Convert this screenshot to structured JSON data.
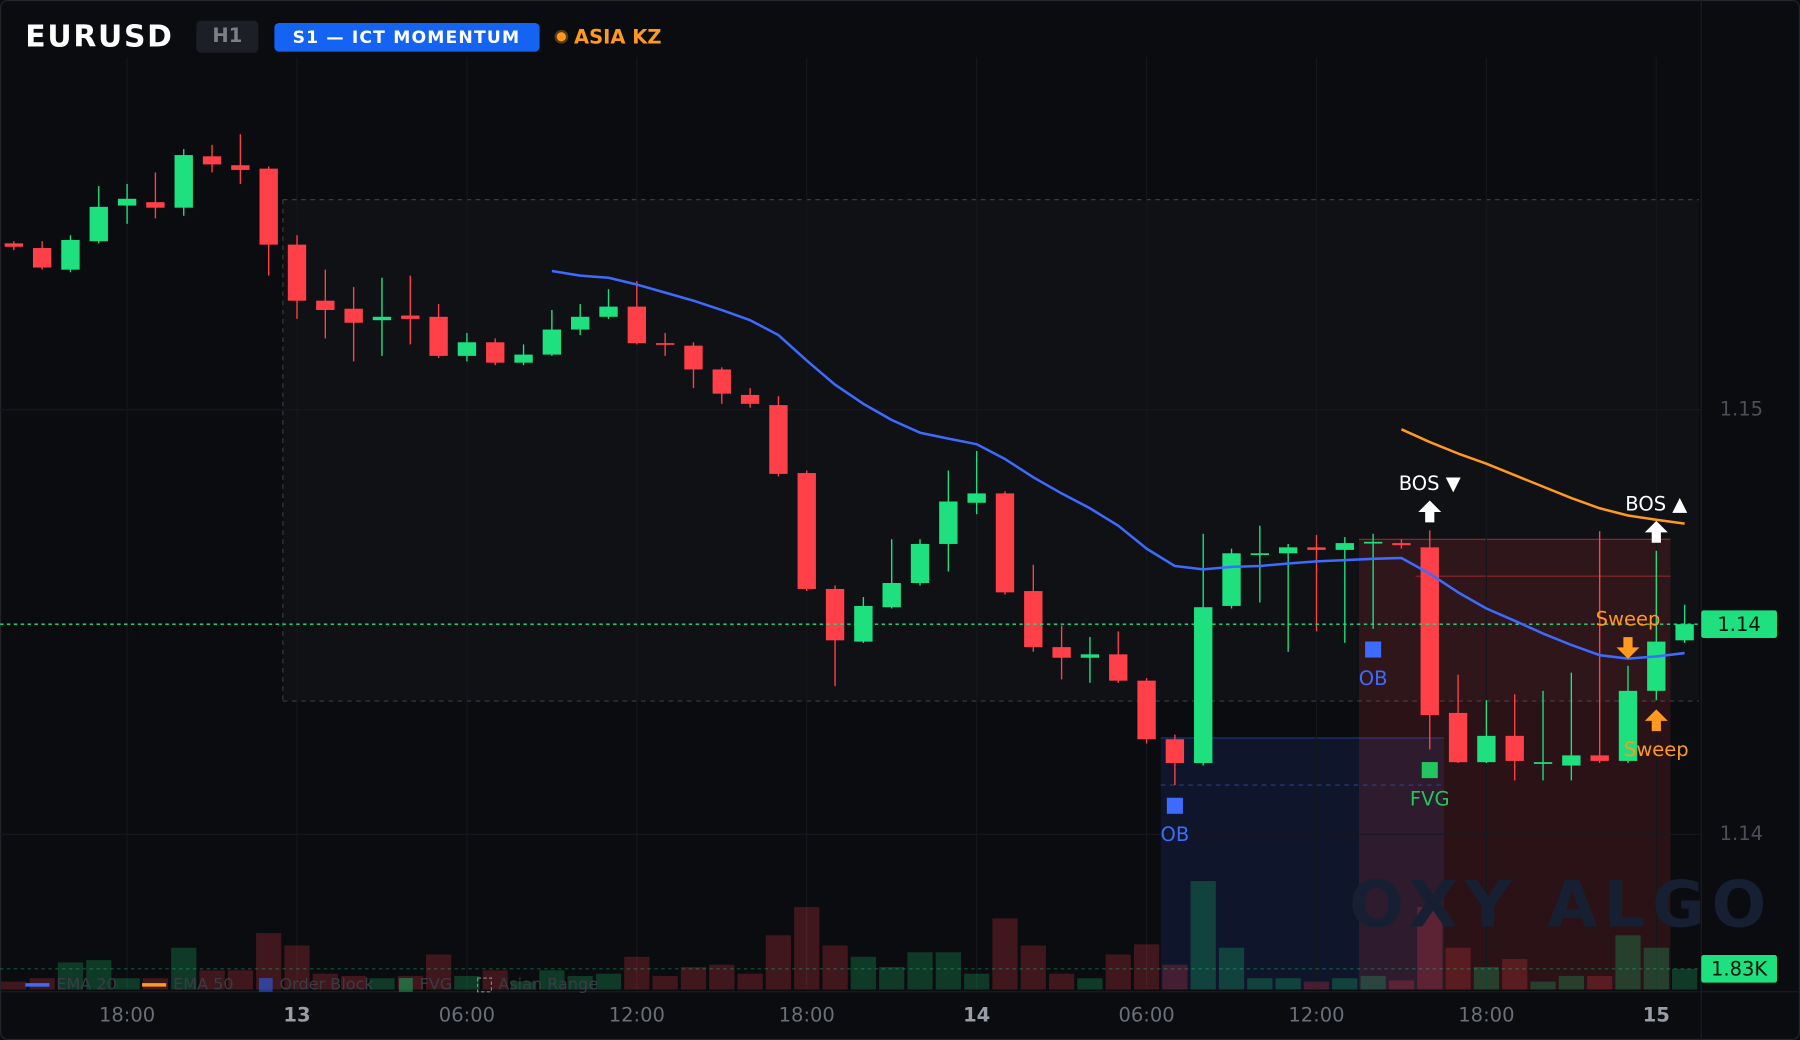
{
  "chart_data": {
    "type": "candlestick",
    "title": "EURUSD",
    "timeframe": "H1",
    "strategy": "S1 — ICT MOMENTUM",
    "session": "ASIA KZ",
    "watermark": "OXY ALGO",
    "up_color": "#1ee07f",
    "down_color": "#ff4048",
    "categories": [
      null,
      null,
      null,
      null,
      "18:00",
      null,
      null,
      null,
      null,
      null,
      "13",
      null,
      null,
      null,
      null,
      null,
      "06:00",
      null,
      null,
      null,
      null,
      null,
      "12:00",
      null,
      null,
      null,
      null,
      null,
      "18:00",
      null,
      null,
      null,
      null,
      null,
      "14",
      null,
      null,
      null,
      null,
      null,
      "06:00",
      null,
      null,
      null,
      null,
      null,
      "12:00",
      null,
      null,
      null,
      null,
      null,
      "18:00",
      null,
      null,
      null,
      null,
      null,
      "15",
      null
    ],
    "open": [
      1.15392,
      1.15381,
      1.1533,
      1.15397,
      1.15481,
      1.15489,
      1.15476,
      1.15597,
      1.15576,
      1.15568,
      1.15389,
      1.15257,
      1.15238,
      1.15211,
      1.15222,
      1.15219,
      1.15127,
      1.15159,
      1.15111,
      1.1513,
      1.15189,
      1.15219,
      1.15243,
      1.15157,
      1.15151,
      1.15095,
      1.15035,
      1.15011,
      1.14851,
      1.14578,
      1.14454,
      1.14535,
      1.14592,
      1.14684,
      1.14781,
      1.14803,
      1.14573,
      1.14441,
      1.14416,
      1.14424,
      1.14362,
      1.14224,
      1.14168,
      1.14538,
      1.14659,
      1.14662,
      1.14676,
      1.1467,
      1.14686,
      1.14686,
      1.14676,
      1.14286,
      1.1417,
      1.14232,
      1.14168,
      1.14162,
      1.14186,
      1.14173,
      1.14338,
      1.14457
    ],
    "high": [
      1.15397,
      1.15397,
      1.15411,
      1.15527,
      1.15532,
      1.15559,
      1.15614,
      1.15624,
      1.15649,
      1.15573,
      1.15411,
      1.1533,
      1.15289,
      1.15311,
      1.15316,
      1.15249,
      1.15181,
      1.15168,
      1.15154,
      1.15235,
      1.15249,
      1.15284,
      1.15303,
      1.15181,
      1.15159,
      1.151,
      1.15051,
      1.15032,
      1.14857,
      1.14586,
      1.14559,
      1.14695,
      1.14695,
      1.14857,
      1.14903,
      1.14808,
      1.14635,
      1.14492,
      1.14465,
      1.14478,
      1.14368,
      1.14235,
      1.14708,
      1.14673,
      1.14727,
      1.14684,
      1.14705,
      1.147,
      1.14708,
      1.14695,
      1.14716,
      1.14376,
      1.14316,
      1.1433,
      1.14338,
      1.14381,
      1.14714,
      1.14397,
      1.14668,
      1.14541
    ],
    "low": [
      1.15376,
      1.1533,
      1.15324,
      1.15392,
      1.15438,
      1.15451,
      1.15457,
      1.15559,
      1.15532,
      1.15316,
      1.15214,
      1.15168,
      1.15114,
      1.15127,
      1.15154,
      1.15122,
      1.15114,
      1.15105,
      1.15105,
      1.15127,
      1.15176,
      1.15214,
      1.15154,
      1.15127,
      1.15051,
      1.15014,
      1.15005,
      1.14843,
      1.14573,
      1.14349,
      1.14451,
      1.14532,
      1.14586,
      1.14619,
      1.14754,
      1.14565,
      1.1443,
      1.14365,
      1.14357,
      1.14357,
      1.14214,
      1.14116,
      1.14162,
      1.14532,
      1.14546,
      1.1443,
      1.14478,
      1.14451,
      1.14484,
      1.14673,
      1.142,
      1.14168,
      1.14168,
      1.14127,
      1.14127,
      1.14127,
      1.14168,
      1.14168,
      1.14316,
      1.14451
    ],
    "close": [
      1.15384,
      1.15335,
      1.154,
      1.15478,
      1.15497,
      1.15476,
      1.156,
      1.15578,
      1.15565,
      1.15389,
      1.15257,
      1.15235,
      1.15205,
      1.15219,
      1.15214,
      1.15127,
      1.15159,
      1.15111,
      1.1513,
      1.15189,
      1.15219,
      1.15243,
      1.15157,
      1.15154,
      1.15095,
      1.15038,
      1.15014,
      1.14849,
      1.14578,
      1.14457,
      1.14538,
      1.14592,
      1.14684,
      1.14784,
      1.14803,
      1.1457,
      1.14441,
      1.14416,
      1.14424,
      1.14362,
      1.14224,
      1.14168,
      1.14535,
      1.14662,
      1.14662,
      1.14676,
      1.1467,
      1.14686,
      1.14689,
      1.14681,
      1.14281,
      1.1417,
      1.14232,
      1.14173,
      1.1417,
      1.14186,
      1.14173,
      1.14338,
      1.14454,
      1.14495
    ],
    "volume": [
      700,
      1000,
      2400,
      2600,
      1000,
      1000,
      3700,
      1700,
      1700,
      5000,
      3900,
      1400,
      1200,
      1000,
      1200,
      3100,
      1200,
      1700,
      700,
      1700,
      1200,
      1400,
      2900,
      1200,
      2000,
      2200,
      1400,
      4800,
      7300,
      3900,
      2900,
      2000,
      3300,
      3300,
      1400,
      6300,
      3900,
      1400,
      1000,
      3100,
      4000,
      2200,
      9600,
      3700,
      1000,
      1000,
      700,
      1000,
      1200,
      800,
      7300,
      3700,
      2000,
      2700,
      700,
      1200,
      1200,
      4800,
      3700,
      1830
    ],
    "last_price_label": "1.14",
    "last_volume_label": "1.83K",
    "ylim": [
      1.1364,
      1.1583
    ],
    "yticks": [
      1.14,
      1.15
    ],
    "volume_ylim": [
      0,
      30000
    ],
    "grid": true,
    "series": [
      {
        "name": "EMA 20",
        "color": "#3d6bff",
        "values": [
          null,
          null,
          null,
          null,
          null,
          null,
          null,
          null,
          null,
          null,
          null,
          null,
          null,
          null,
          null,
          null,
          null,
          null,
          null,
          1.15327,
          1.15316,
          1.15311,
          1.15295,
          1.15276,
          1.15257,
          1.15235,
          1.15211,
          1.15176,
          1.15116,
          1.15059,
          1.15014,
          1.14976,
          1.14946,
          1.14932,
          1.14919,
          1.14884,
          1.14841,
          1.14803,
          1.14768,
          1.14727,
          1.14673,
          1.14632,
          1.14624,
          1.1463,
          1.14632,
          1.14638,
          1.14643,
          1.14646,
          1.14649,
          1.14651,
          1.14614,
          1.1457,
          1.14532,
          1.14503,
          1.14473,
          1.14446,
          1.14422,
          1.14414,
          1.14419,
          1.14427
        ]
      },
      {
        "name": "EMA 50",
        "color": "#ff9a1f",
        "values": [
          null,
          null,
          null,
          null,
          null,
          null,
          null,
          null,
          null,
          null,
          null,
          null,
          null,
          null,
          null,
          null,
          null,
          null,
          null,
          null,
          null,
          null,
          null,
          null,
          null,
          null,
          null,
          null,
          null,
          null,
          null,
          null,
          null,
          null,
          null,
          null,
          null,
          null,
          null,
          null,
          null,
          null,
          null,
          null,
          null,
          null,
          null,
          null,
          null,
          1.14954,
          1.14924,
          1.14897,
          1.14873,
          1.14846,
          1.14819,
          1.14792,
          1.14768,
          1.14751,
          1.14741,
          1.14732
        ]
      }
    ],
    "legend_markers": [
      {
        "name": "Order Block",
        "color": "#2f5bea",
        "kind": "square"
      },
      {
        "name": "FVG",
        "color": "#1a9e55",
        "kind": "square"
      },
      {
        "name": "Asian Range",
        "color": "#888888",
        "kind": "dashed"
      }
    ],
    "zones": [
      {
        "kind": "asian-range",
        "from": 10,
        "to": 59,
        "top": 1.15495,
        "bottom": 1.14314,
        "color": "#ffffff"
      },
      {
        "kind": "order-block",
        "from": 41,
        "to": 50,
        "top": 1.14227,
        "bottom": null,
        "color": "#2f5bea"
      },
      {
        "kind": "bearish-zone",
        "from": 48,
        "to": 58,
        "top": 1.14695,
        "bottom": null,
        "color": "#ff4048"
      }
    ],
    "levels": [
      {
        "level": 1.14116,
        "from": 41,
        "to": 50,
        "color": "#3d6bff"
      },
      {
        "level": 1.14608,
        "from": 50,
        "to": 58,
        "color": "#ff4048"
      }
    ],
    "annotations": [
      {
        "text": "OB",
        "index": 41,
        "place": "below",
        "kind": "square",
        "color": "#3d6bff"
      },
      {
        "text": "OB",
        "index": 48,
        "place": "below",
        "kind": "square",
        "color": "#3d6bff"
      },
      {
        "text": "FVG",
        "index": 50,
        "place": "below",
        "kind": "square",
        "color": "#22c55e"
      },
      {
        "text": "BOS ▼",
        "index": 50,
        "place": "above",
        "kind": "arrow-up",
        "color": "#ffffff"
      },
      {
        "text": "BOS ▲",
        "index": 58,
        "place": "above",
        "kind": "arrow-up",
        "color": "#ffffff"
      },
      {
        "text": "Sweep",
        "index": 57,
        "place": "above",
        "kind": "arrow-down",
        "color": "#ff9a1f"
      },
      {
        "text": "Sweep",
        "index": 58,
        "place": "below",
        "kind": "arrow-up",
        "color": "#ff9a1f"
      }
    ]
  }
}
